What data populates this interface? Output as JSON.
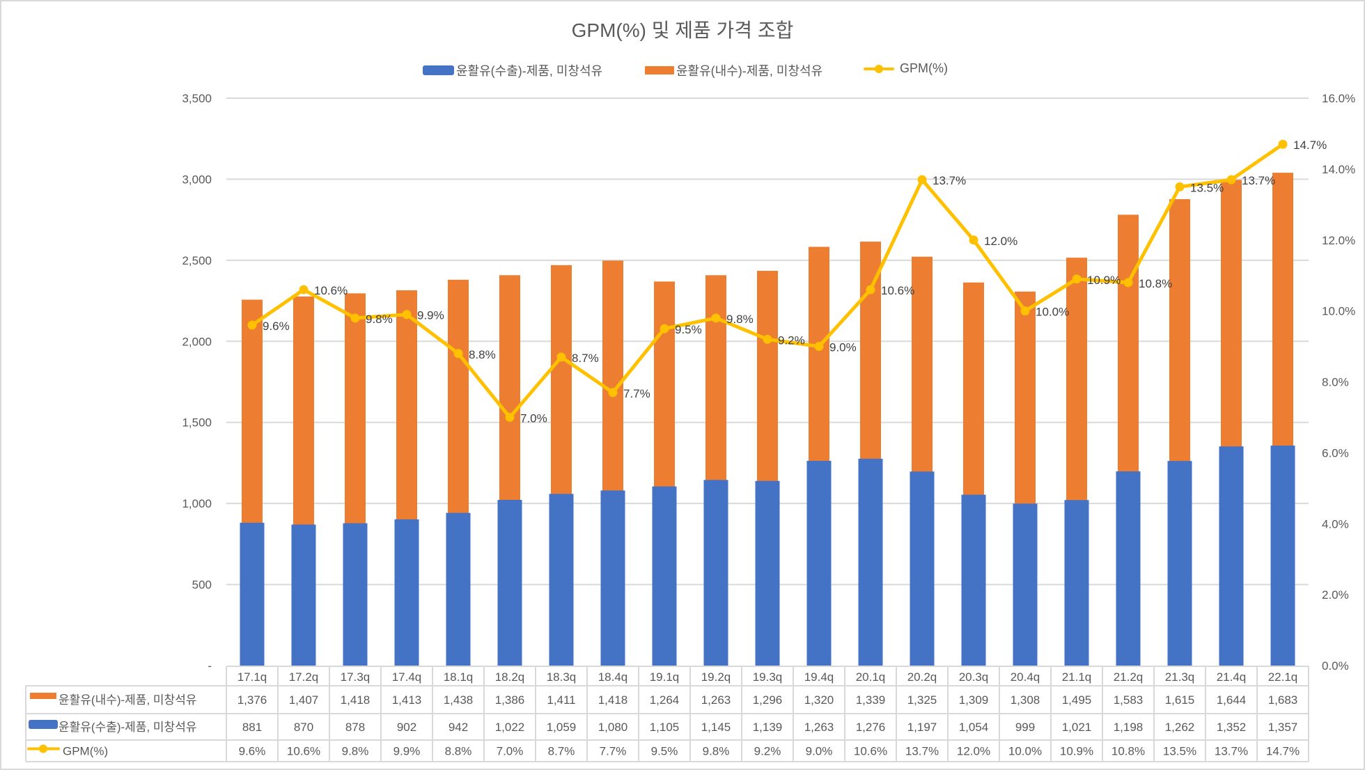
{
  "chart_data": {
    "type": "bar",
    "subtype": "stacked-bar-with-line-and-data-table",
    "title": "GPM(%) 및 제품 가격 조합",
    "categories": [
      "17.1q",
      "17.2q",
      "17.3q",
      "17.4q",
      "18.1q",
      "18.2q",
      "18.3q",
      "18.4q",
      "19.1q",
      "19.2q",
      "19.3q",
      "19.4q",
      "20.1q",
      "20.2q",
      "20.3q",
      "20.4q",
      "21.1q",
      "21.2q",
      "21.3q",
      "21.4q",
      "22.1q"
    ],
    "series": [
      {
        "name": "윤활유(수출)-제품, 미창석유",
        "type": "bar",
        "axis": "left",
        "color": "#4472C4",
        "values": [
          881,
          870,
          878,
          902,
          942,
          1022,
          1059,
          1080,
          1105,
          1145,
          1139,
          1263,
          1276,
          1197,
          1054,
          999,
          1021,
          1198,
          1262,
          1352,
          1357
        ],
        "labels": [
          "881",
          "870",
          "878",
          "902",
          "942",
          "1,022",
          "1,059",
          "1,080",
          "1,105",
          "1,145",
          "1,139",
          "1,263",
          "1,276",
          "1,197",
          "1,054",
          "999",
          "1,021",
          "1,198",
          "1,262",
          "1,352",
          "1,357"
        ]
      },
      {
        "name": "윤활유(내수)-제품, 미창석유",
        "type": "bar",
        "axis": "left",
        "color": "#ED7D31",
        "values": [
          1376,
          1407,
          1418,
          1413,
          1438,
          1386,
          1411,
          1418,
          1264,
          1263,
          1296,
          1320,
          1339,
          1325,
          1309,
          1308,
          1495,
          1583,
          1615,
          1644,
          1683
        ],
        "labels": [
          "1,376",
          "1,407",
          "1,418",
          "1,413",
          "1,438",
          "1,386",
          "1,411",
          "1,418",
          "1,264",
          "1,263",
          "1,296",
          "1,320",
          "1,339",
          "1,325",
          "1,309",
          "1,308",
          "1,495",
          "1,583",
          "1,615",
          "1,644",
          "1,683"
        ]
      },
      {
        "name": "GPM(%)",
        "type": "line",
        "axis": "right",
        "color": "#FFC000",
        "values": [
          9.6,
          10.6,
          9.8,
          9.9,
          8.8,
          7.0,
          8.7,
          7.7,
          9.5,
          9.8,
          9.2,
          9.0,
          10.6,
          13.7,
          12.0,
          10.0,
          10.9,
          10.8,
          13.5,
          13.7,
          14.7
        ],
        "labels": [
          "9.6%",
          "10.6%",
          "9.8%",
          "9.9%",
          "8.8%",
          "7.0%",
          "8.7%",
          "7.7%",
          "9.5%",
          "9.8%",
          "9.2%",
          "9.0%",
          "10.6%",
          "13.7%",
          "12.0%",
          "10.0%",
          "10.9%",
          "10.8%",
          "13.5%",
          "13.7%",
          "14.7%"
        ]
      }
    ],
    "y_left": {
      "ylim": [
        0,
        3500
      ],
      "ticks": [
        0,
        500,
        1000,
        1500,
        2000,
        2500,
        3000,
        3500
      ],
      "tick_labels": [
        "-",
        "500",
        "1,000",
        "1,500",
        "2,000",
        "2,500",
        "3,000",
        "3,500"
      ]
    },
    "y_right": {
      "ylim": [
        0,
        16
      ],
      "ticks": [
        0,
        2,
        4,
        6,
        8,
        10,
        12,
        14,
        16
      ],
      "tick_labels": [
        "0.0%",
        "2.0%",
        "4.0%",
        "6.0%",
        "8.0%",
        "10.0%",
        "12.0%",
        "14.0%",
        "16.0%"
      ]
    },
    "grid": true,
    "legend": "top",
    "data_table": true,
    "data_table_row_order": [
      1,
      0,
      2
    ],
    "xlabel": "",
    "ylabel": ""
  }
}
